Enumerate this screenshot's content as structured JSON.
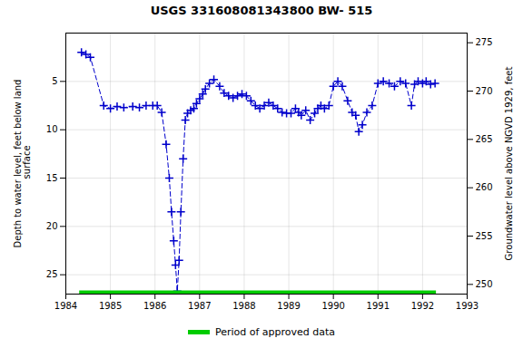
{
  "chart_data": {
    "type": "line",
    "title": "USGS 331608081343800 BW- 515",
    "ylabel": "Depth to water level, feet below land\n surface",
    "y2label": "Groundwater level above NGVD 1929, feet",
    "xlim": [
      1984,
      1993
    ],
    "xticks": [
      1984,
      1985,
      1986,
      1987,
      1988,
      1989,
      1990,
      1991,
      1992,
      1993
    ],
    "ylim": [
      27,
      0
    ],
    "yticks": [
      5,
      10,
      15,
      20,
      25
    ],
    "y2lim": [
      249,
      276
    ],
    "y2ticks": [
      250,
      255,
      260,
      265,
      270,
      275
    ],
    "grid": true,
    "legend": "bottom",
    "x": [
      1984.35,
      1984.45,
      1984.55,
      1984.85,
      1985.0,
      1985.15,
      1985.3,
      1985.5,
      1985.65,
      1985.8,
      1985.95,
      1986.05,
      1986.15,
      1986.25,
      1986.32,
      1986.37,
      1986.42,
      1986.46,
      1986.5,
      1986.54,
      1986.58,
      1986.63,
      1986.68,
      1986.73,
      1986.8,
      1986.87,
      1986.93,
      1987.0,
      1987.07,
      1987.13,
      1987.22,
      1987.32,
      1987.45,
      1987.55,
      1987.65,
      1987.75,
      1987.85,
      1987.95,
      1988.05,
      1988.15,
      1988.25,
      1988.35,
      1988.45,
      1988.55,
      1988.65,
      1988.75,
      1988.85,
      1988.95,
      1989.05,
      1989.15,
      1989.22,
      1989.28,
      1989.38,
      1989.48,
      1989.58,
      1989.65,
      1989.72,
      1989.8,
      1989.9,
      1990.0,
      1990.1,
      1990.2,
      1990.32,
      1990.42,
      1990.5,
      1990.57,
      1990.65,
      1990.75,
      1990.87,
      1991.0,
      1991.12,
      1991.25,
      1991.37,
      1991.5,
      1991.62,
      1991.75,
      1991.82,
      1991.9,
      1992.0,
      1992.08,
      1992.18,
      1992.28
    ],
    "series": [
      {
        "color": "#0000cc",
        "marker": "plus",
        "line_style": "dashed",
        "values": [
          2.0,
          2.2,
          2.5,
          7.5,
          7.8,
          7.6,
          7.7,
          7.6,
          7.7,
          7.5,
          7.5,
          7.5,
          8.2,
          11.5,
          15.0,
          18.5,
          21.5,
          24.0,
          26.7,
          23.5,
          18.5,
          13.0,
          9.0,
          8.3,
          8.0,
          7.8,
          7.3,
          6.8,
          6.3,
          5.8,
          5.2,
          4.8,
          5.5,
          6.2,
          6.5,
          6.7,
          6.5,
          6.3,
          6.5,
          7.0,
          7.5,
          7.8,
          7.5,
          7.2,
          7.5,
          7.8,
          8.2,
          8.3,
          8.3,
          7.8,
          8.2,
          8.5,
          8.0,
          9.0,
          8.3,
          7.8,
          7.5,
          7.8,
          7.5,
          5.5,
          5.0,
          5.5,
          7.0,
          8.2,
          8.5,
          10.2,
          9.5,
          8.2,
          7.5,
          5.2,
          5.0,
          5.2,
          5.5,
          5.0,
          5.2,
          7.5,
          5.3,
          5.0,
          5.2,
          5.0,
          5.3,
          5.2
        ]
      },
      {
        "name": "Period of approved data",
        "color": "#00cc00",
        "line_style": "solid",
        "x": [
          1984.3,
          1992.3
        ],
        "values": [
          26.85,
          26.85
        ]
      }
    ]
  }
}
